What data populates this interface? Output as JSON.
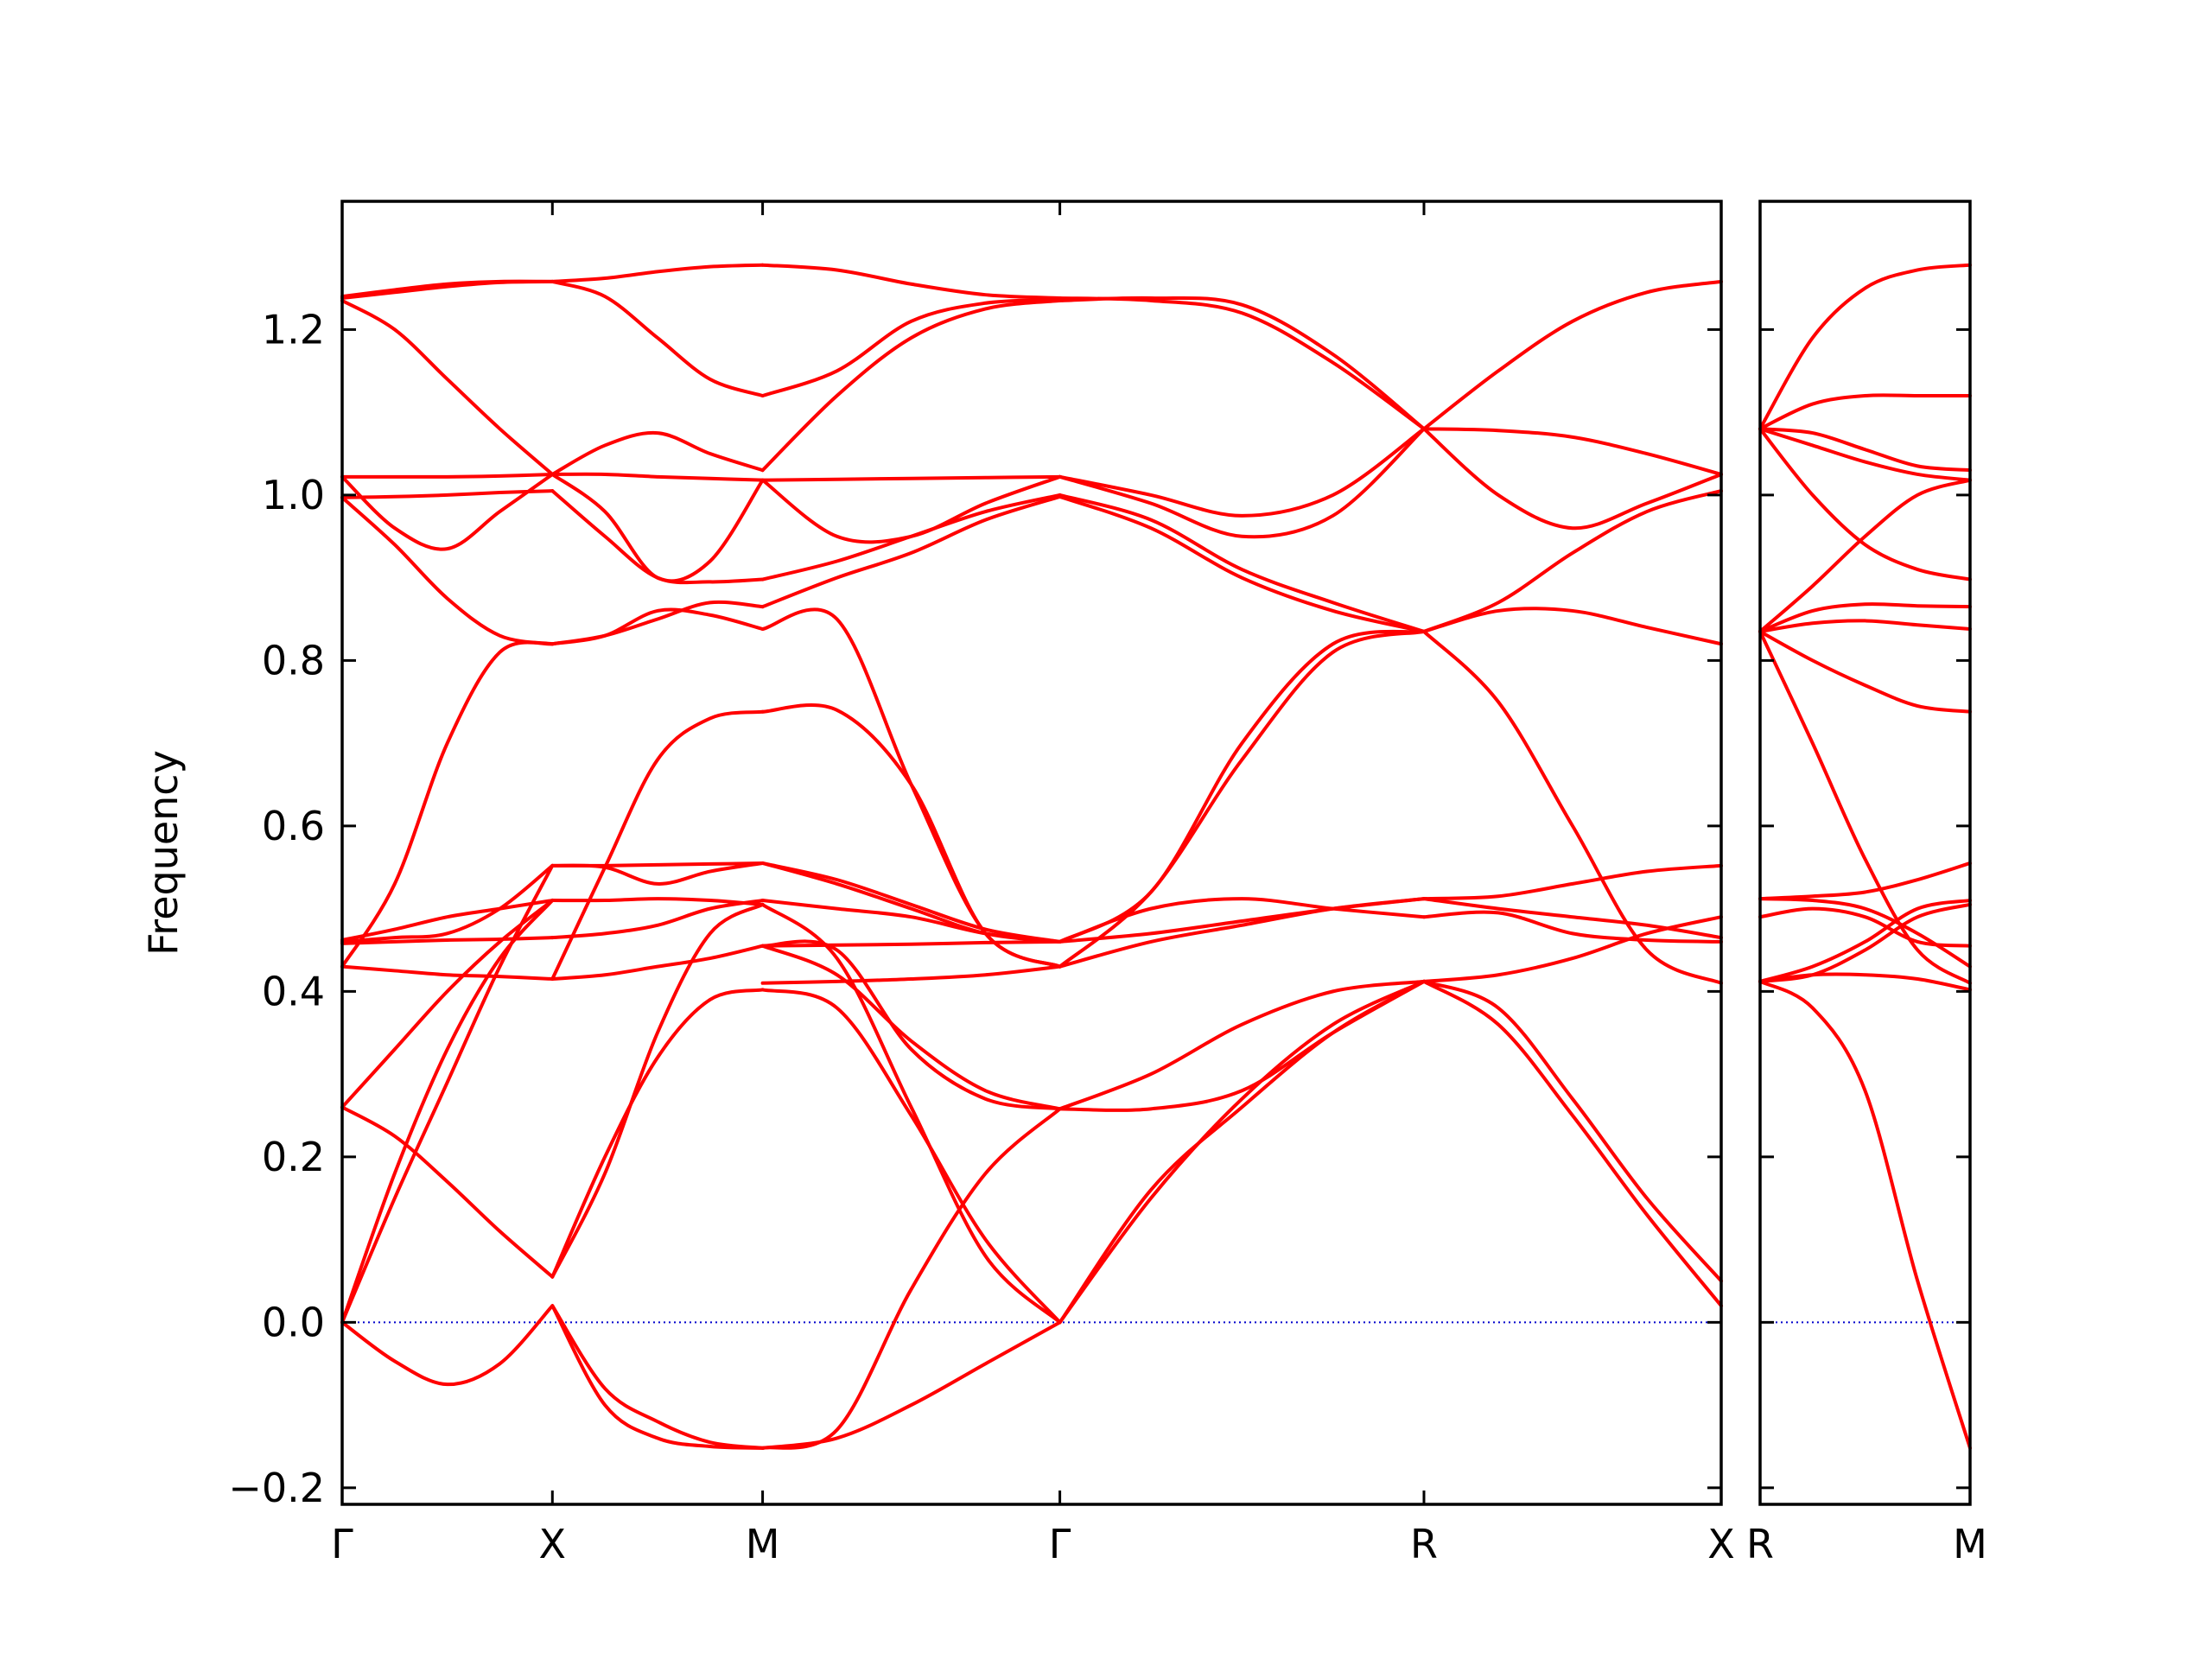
{
  "chart_data": {
    "type": "line",
    "ylabel": "Frequency",
    "ylim": [
      -0.22,
      1.355
    ],
    "yticks": [
      -0.2,
      0.0,
      0.2,
      0.4,
      0.6,
      0.8,
      1.0,
      1.2
    ],
    "ytick_labels": [
      "−0.2",
      "0.0",
      "0.2",
      "0.4",
      "0.6",
      "0.8",
      "1.0",
      "1.2"
    ],
    "line_color": "#ff0000",
    "zero_line_color": "#0000cc",
    "panels": [
      {
        "name": "main",
        "xrange": [
          0,
          6.5
        ],
        "high_symmetry_points": [
          {
            "label": "Γ",
            "x": 0
          },
          {
            "label": "X",
            "x": 1
          },
          {
            "label": "M",
            "x": 2
          },
          {
            "label": "Γ",
            "x": 3.414
          },
          {
            "label": "R",
            "x": 5.146
          },
          {
            "label": "X",
            "x": 6.56
          }
        ],
        "segments": [
          {
            "from": "Γ",
            "to": "X",
            "x": [
              0,
              1
            ],
            "bands": [
              [
                0.0,
                -0.047,
                -0.075,
                -0.05,
                0.02
              ],
              [
                0.0,
                0.15,
                0.29,
                0.43,
                0.552
              ],
              [
                0.0,
                0.18,
                0.33,
                0.44,
                0.51
              ],
              [
                0.26,
                0.225,
                0.17,
                0.11,
                0.055
              ],
              [
                0.26,
                0.33,
                0.4,
                0.46,
                0.51
              ],
              [
                0.43,
                0.425,
                0.42,
                0.418,
                0.415
              ],
              [
                0.43,
                0.53,
                0.7,
                0.81,
                0.82
              ],
              [
                0.458,
                0.46,
                0.462,
                0.463,
                0.465
              ],
              [
                0.46,
                0.465,
                0.47,
                0.5,
                0.552
              ],
              [
                0.462,
                0.475,
                0.49,
                0.5,
                0.51
              ],
              [
                0.997,
                0.94,
                0.875,
                0.83,
                0.82
              ],
              [
                0.997,
                0.998,
                1.0,
                1.003,
                1.005
              ],
              [
                1.022,
                0.96,
                0.935,
                0.98,
                1.025
              ],
              [
                1.022,
                1.022,
                1.022,
                1.023,
                1.025
              ],
              [
                1.235,
                1.2,
                1.14,
                1.08,
                1.025
              ],
              [
                1.238,
                1.245,
                1.252,
                1.257,
                1.258
              ],
              [
                1.24,
                1.248,
                1.255,
                1.258,
                1.258
              ]
            ]
          },
          {
            "from": "X",
            "to": "M",
            "x": [
              1,
              2
            ],
            "bands": [
              [
                0.02,
                -0.1,
                -0.14,
                -0.15,
                -0.152
              ],
              [
                0.02,
                -0.08,
                -0.12,
                -0.145,
                -0.152
              ],
              [
                0.055,
                0.2,
                0.32,
                0.39,
                0.402
              ],
              [
                0.055,
                0.18,
                0.35,
                0.47,
                0.505
              ],
              [
                0.415,
                0.42,
                0.43,
                0.44,
                0.455
              ],
              [
                0.415,
                0.55,
                0.68,
                0.73,
                0.738
              ],
              [
                0.465,
                0.47,
                0.48,
                0.5,
                0.51
              ],
              [
                0.51,
                0.51,
                0.512,
                0.51,
                0.505
              ],
              [
                0.552,
                0.55,
                0.53,
                0.545,
                0.555
              ],
              [
                0.552,
                0.552,
                0.553,
                0.554,
                0.555
              ],
              [
                0.82,
                0.83,
                0.85,
                0.87,
                0.865
              ],
              [
                0.82,
                0.83,
                0.86,
                0.855,
                0.838
              ],
              [
                1.005,
                0.95,
                0.9,
                0.895,
                0.898
              ],
              [
                1.025,
                0.98,
                0.9,
                0.92,
                1.018
              ],
              [
                1.025,
                1.025,
                1.022,
                1.02,
                1.018
              ],
              [
                1.025,
                1.06,
                1.075,
                1.05,
                1.03
              ],
              [
                1.258,
                1.262,
                1.27,
                1.276,
                1.278
              ],
              [
                1.258,
                1.24,
                1.19,
                1.14,
                1.12
              ]
            ]
          },
          {
            "from": "M",
            "to": "Γ",
            "x": [
              2,
              3.414
            ],
            "bands": [
              [
                -0.152,
                -0.14,
                -0.1,
                -0.05,
                0.0
              ],
              [
                -0.152,
                -0.13,
                0.04,
                0.18,
                0.258
              ],
              [
                0.402,
                0.38,
                0.25,
                0.1,
                0.0
              ],
              [
                0.505,
                0.44,
                0.26,
                0.08,
                0.0
              ],
              [
                0.455,
                0.42,
                0.34,
                0.28,
                0.258
              ],
              [
                0.455,
                0.45,
                0.33,
                0.27,
                0.258
              ],
              [
                0.41,
                0.412,
                0.415,
                0.42,
                0.43
              ],
              [
                0.455,
                0.456,
                0.457,
                0.459,
                0.46
              ],
              [
                0.51,
                0.5,
                0.49,
                0.47,
                0.46
              ],
              [
                0.555,
                0.53,
                0.5,
                0.47,
                0.46
              ],
              [
                0.555,
                0.535,
                0.505,
                0.475,
                0.46
              ],
              [
                0.738,
                0.74,
                0.65,
                0.47,
                0.43
              ],
              [
                0.838,
                0.85,
                0.65,
                0.47,
                0.43
              ],
              [
                0.865,
                0.9,
                0.93,
                0.97,
                0.998
              ],
              [
                0.898,
                0.92,
                0.95,
                0.98,
                1.0
              ],
              [
                1.018,
                1.019,
                1.02,
                1.021,
                1.022
              ],
              [
                1.018,
                0.95,
                0.95,
                0.99,
                1.022
              ],
              [
                1.03,
                1.12,
                1.19,
                1.225,
                1.235
              ],
              [
                1.12,
                1.15,
                1.21,
                1.232,
                1.236
              ],
              [
                1.278,
                1.272,
                1.255,
                1.242,
                1.238
              ]
            ]
          },
          {
            "from": "Γ",
            "to": "R",
            "x": [
              3.414,
              5.146
            ],
            "bands": [
              [
                0.0,
                0.15,
                0.27,
                0.36,
                0.412
              ],
              [
                0.0,
                0.16,
                0.26,
                0.35,
                0.412
              ],
              [
                0.258,
                0.258,
                0.28,
                0.35,
                0.412
              ],
              [
                0.258,
                0.3,
                0.36,
                0.4,
                0.412
              ],
              [
                0.43,
                0.46,
                0.48,
                0.5,
                0.512
              ],
              [
                0.46,
                0.47,
                0.485,
                0.5,
                0.512
              ],
              [
                0.46,
                0.5,
                0.512,
                0.5,
                0.49
              ],
              [
                0.46,
                0.52,
                0.7,
                0.82,
                0.835
              ],
              [
                0.43,
                0.52,
                0.68,
                0.81,
                0.835
              ],
              [
                0.998,
                0.96,
                0.9,
                0.86,
                0.835
              ],
              [
                1.0,
                0.97,
                0.91,
                0.87,
                0.835
              ],
              [
                1.022,
                0.99,
                0.95,
                0.975,
                1.08
              ],
              [
                1.022,
                1.0,
                0.975,
                1.0,
                1.08
              ],
              [
                1.235,
                1.238,
                1.23,
                1.17,
                1.08
              ],
              [
                1.238,
                1.235,
                1.22,
                1.16,
                1.08
              ]
            ]
          },
          {
            "from": "R",
            "to": "X",
            "x": [
              5.146,
              6.56
            ],
            "bands": [
              [
                0.412,
                0.36,
                0.25,
                0.13,
                0.02
              ],
              [
                0.412,
                0.38,
                0.27,
                0.15,
                0.05
              ],
              [
                0.412,
                0.42,
                0.44,
                0.47,
                0.49
              ],
              [
                0.49,
                0.495,
                0.47,
                0.462,
                0.46
              ],
              [
                0.512,
                0.515,
                0.53,
                0.545,
                0.552
              ],
              [
                0.512,
                0.5,
                0.49,
                0.48,
                0.465
              ],
              [
                0.835,
                0.75,
                0.6,
                0.45,
                0.41
              ],
              [
                0.835,
                0.86,
                0.86,
                0.84,
                0.82
              ],
              [
                0.835,
                0.87,
                0.93,
                0.98,
                1.005
              ],
              [
                1.08,
                1.078,
                1.07,
                1.05,
                1.025
              ],
              [
                1.08,
                1.0,
                0.96,
                0.99,
                1.025
              ],
              [
                1.08,
                1.15,
                1.21,
                1.245,
                1.258
              ]
            ]
          }
        ]
      },
      {
        "name": "side",
        "xrange": [
          0,
          1
        ],
        "high_symmetry_points": [
          {
            "label": "R",
            "x": 0
          },
          {
            "label": "M",
            "x": 1
          }
        ],
        "segments": [
          {
            "from": "R",
            "to": "M",
            "x": [
              0,
              1
            ],
            "bands": [
              [
                0.412,
                0.38,
                0.28,
                0.05,
                -0.152
              ],
              [
                0.412,
                0.42,
                0.42,
                0.415,
                0.402
              ],
              [
                0.412,
                0.42,
                0.45,
                0.49,
                0.505
              ],
              [
                0.412,
                0.43,
                0.46,
                0.5,
                0.51
              ],
              [
                0.49,
                0.5,
                0.49,
                0.46,
                0.455
              ],
              [
                0.512,
                0.515,
                0.52,
                0.535,
                0.555
              ],
              [
                0.512,
                0.51,
                0.5,
                0.47,
                0.43
              ],
              [
                0.835,
                0.7,
                0.56,
                0.45,
                0.41
              ],
              [
                0.835,
                0.8,
                0.77,
                0.745,
                0.738
              ],
              [
                0.835,
                0.86,
                0.868,
                0.866,
                0.865
              ],
              [
                0.835,
                0.845,
                0.848,
                0.843,
                0.838
              ],
              [
                0.835,
                0.89,
                0.95,
                1.0,
                1.018
              ],
              [
                1.08,
                1.0,
                0.94,
                0.91,
                0.898
              ],
              [
                1.08,
                1.06,
                1.04,
                1.025,
                1.018
              ],
              [
                1.08,
                1.075,
                1.055,
                1.035,
                1.03
              ],
              [
                1.08,
                1.11,
                1.12,
                1.12,
                1.12
              ],
              [
                1.08,
                1.19,
                1.25,
                1.272,
                1.278
              ]
            ]
          }
        ]
      }
    ]
  }
}
